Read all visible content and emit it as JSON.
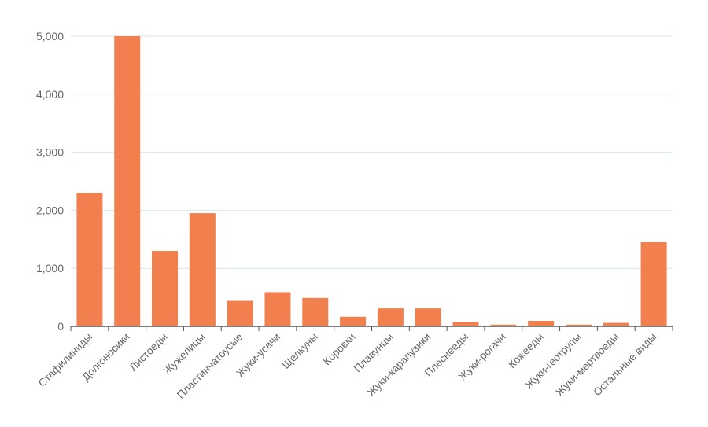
{
  "chart_data": {
    "type": "bar",
    "title": "",
    "xlabel": "",
    "ylabel": "",
    "ylim": [
      0,
      5000
    ],
    "yticks": [
      0,
      1000,
      2000,
      3000,
      4000,
      5000
    ],
    "ytick_labels": [
      "0",
      "1,000",
      "2,000",
      "3,000",
      "4,000",
      "5,000"
    ],
    "grid": true,
    "bar_color": "#f2804f",
    "categories": [
      "Стафилиниды",
      "Долгоносики",
      "Листоеды",
      "Жужелицы",
      "Пластинчатоусые",
      "Жуки-усачи",
      "Щелкуны",
      "Коровки",
      "Плавунцы",
      "Жуки-карапузики",
      "Плеснееды",
      "Жуки-рогачи",
      "Кожееды",
      "Жуки-геотрупы",
      "Жуки-мертвоеды",
      "Остальные виды"
    ],
    "values": [
      2300,
      5000,
      1300,
      1950,
      440,
      590,
      490,
      165,
      310,
      310,
      70,
      30,
      95,
      30,
      60,
      1450
    ]
  }
}
